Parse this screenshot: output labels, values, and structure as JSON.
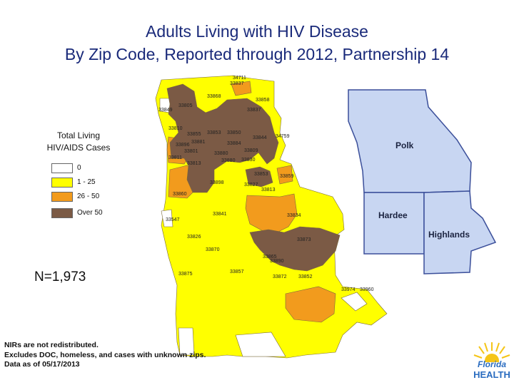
{
  "title": {
    "line1": "Adults Living with HIV Disease",
    "line2": "By Zip Code, Reported through 2012, Partnership 14"
  },
  "legend": {
    "title_line1": "Total Living",
    "title_line2": "HIV/AIDS Cases",
    "items": [
      {
        "label": "0",
        "color": "#ffffff"
      },
      {
        "label": "1 - 25",
        "color": "#ffff00"
      },
      {
        "label": "26 - 50",
        "color": "#f29b1d"
      },
      {
        "label": "Over 50",
        "color": "#7b5a45"
      }
    ]
  },
  "total_count": "N=1,973",
  "counties": [
    "Polk",
    "Hardee",
    "Highlands"
  ],
  "zip_labels": [
    "34711",
    "33837",
    "33868",
    "33858",
    "33805",
    "33849",
    "33837",
    "33810",
    "33855",
    "33853",
    "33850",
    "33844",
    "34759",
    "33896",
    "33881",
    "33884",
    "33809",
    "33811",
    "33813",
    "33801",
    "33880",
    "33880",
    "33830",
    "33853",
    "33859",
    "33898",
    "33827",
    "33813",
    "33860",
    "33547",
    "33841",
    "33834",
    "33826",
    "33873",
    "33870",
    "33865",
    "33890",
    "33875",
    "33857",
    "33872",
    "33852",
    "33974",
    "33960"
  ],
  "footnote": {
    "line1": "NIRs are not redistributed.",
    "line2": "Excludes DOC, homeless, and cases with unknown zips.",
    "line3": "Data as of 05/17/2013"
  },
  "logo": {
    "line1": "Florida",
    "line2": "HEALTH"
  },
  "colors": {
    "none": "#ffffff",
    "low": "#ffff00",
    "mid": "#f29b1d",
    "high": "#7b5a45",
    "inset_fill": "#c8d6f2",
    "title": "#1a2a7a"
  }
}
